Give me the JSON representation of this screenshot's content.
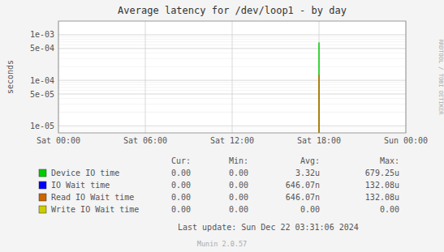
{
  "chart_data": {
    "type": "bar",
    "title": "Average latency for /dev/loop1 - by day",
    "y_label": "seconds",
    "x": [
      64800
    ],
    "bar_width": 300,
    "xlim": [
      0,
      86400
    ],
    "xticks": [
      {
        "value": 0,
        "label": "Sat 00:00"
      },
      {
        "value": 21600,
        "label": "Sat 06:00"
      },
      {
        "value": 43200,
        "label": "Sat 12:00"
      },
      {
        "value": 64800,
        "label": "Sat 18:00"
      },
      {
        "value": 86400,
        "label": "Sun 00:00"
      }
    ],
    "log": "y",
    "ylim": [
      7e-06,
      0.002
    ],
    "yticks": [
      {
        "value": 1e-05,
        "label": "1e-05"
      },
      {
        "value": 5e-05,
        "label": "5e-05"
      },
      {
        "value": 0.0001,
        "label": "1e-04"
      },
      {
        "value": 0.0005,
        "label": "5e-04"
      },
      {
        "value": 0.001,
        "label": "1e-03"
      }
    ],
    "grid": true,
    "stats_headers": [
      "Cur:",
      "Min:",
      "Avg:",
      "Max:"
    ],
    "series": [
      {
        "name": "Device IO time",
        "color": "#00cc00",
        "values": [
          0.00067925
        ],
        "stats": [
          "0.00",
          "0.00",
          "3.32u",
          "679.25u"
        ]
      },
      {
        "name": "IO Wait time",
        "color": "#0000ff",
        "values": [
          null
        ],
        "stats": [
          "0.00",
          "0.00",
          "646.07n",
          "132.08u"
        ]
      },
      {
        "name": "Read IO Wait time",
        "color": "#cc6600",
        "values": [
          0.000132
        ],
        "stats": [
          "0.00",
          "0.00",
          "646.07n",
          "132.08u"
        ]
      },
      {
        "name": "Write IO Wait time",
        "color": "#cccc00",
        "values": [
          null
        ],
        "stats": [
          "0.00",
          "0.00",
          "0.00",
          "0.00"
        ]
      }
    ],
    "last_update": "Last update: Sun Dec 22 03:31:06 2024",
    "watermark": "RRDTOOL / TOBI OETIKER",
    "version": "Munin 2.0.57"
  }
}
